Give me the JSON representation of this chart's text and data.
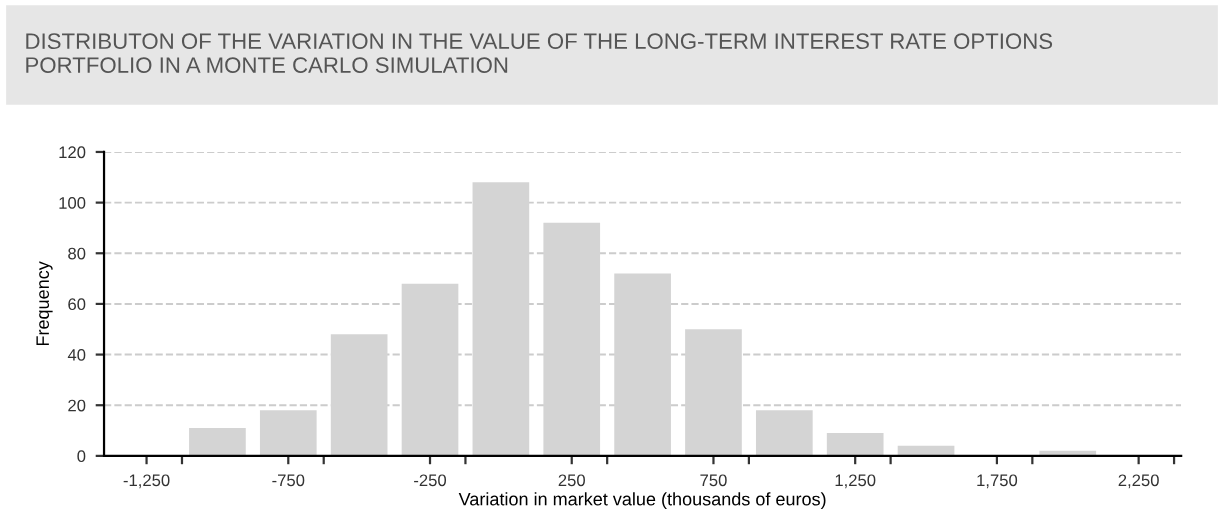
{
  "chart_data": {
    "type": "histogram",
    "title": "DISTRIBUTON OF THE VARIATION IN THE VALUE OF THE LONG-TERM INTEREST RATE OPTIONS\nPORTFOLIO IN A MONTE CARLO SIMULATION",
    "xlabel": "Variation in market value (thousands of euros)",
    "ylabel": "Frequency",
    "bins": [
      -1375,
      -1125,
      -875,
      -625,
      -375,
      -125,
      125,
      375,
      625,
      875,
      1125,
      1375,
      1625,
      1875,
      2125,
      2375
    ],
    "values": [
      0,
      11,
      18,
      48,
      68,
      108,
      92,
      72,
      50,
      18,
      9,
      4,
      0,
      2,
      0
    ],
    "color": "#d4d4d4",
    "xlim": [
      -1400,
      2400
    ],
    "xticks": [
      {
        "value": -1250,
        "label": "-1,250"
      },
      {
        "value": -750,
        "label": "-750"
      },
      {
        "value": -250,
        "label": "-250"
      },
      250,
      750,
      {
        "value": 1250,
        "label": "1,250"
      },
      {
        "value": 1750,
        "label": "1,750"
      },
      {
        "value": 2250,
        "label": "2,250"
      },
      {
        "value": -1125,
        "label": null
      },
      {
        "value": -625,
        "label": null
      },
      {
        "value": -125,
        "label": null
      },
      {
        "value": 375,
        "label": null
      },
      {
        "value": 875,
        "label": null
      },
      {
        "value": 1375,
        "label": null
      },
      {
        "value": 1875,
        "label": null
      },
      {
        "value": 2375,
        "label": null
      }
    ],
    "ylim": [
      0,
      120
    ],
    "yticks": [
      0,
      20,
      40,
      60,
      80,
      100,
      120
    ],
    "grid": "y",
    "line_style": "dashed"
  }
}
